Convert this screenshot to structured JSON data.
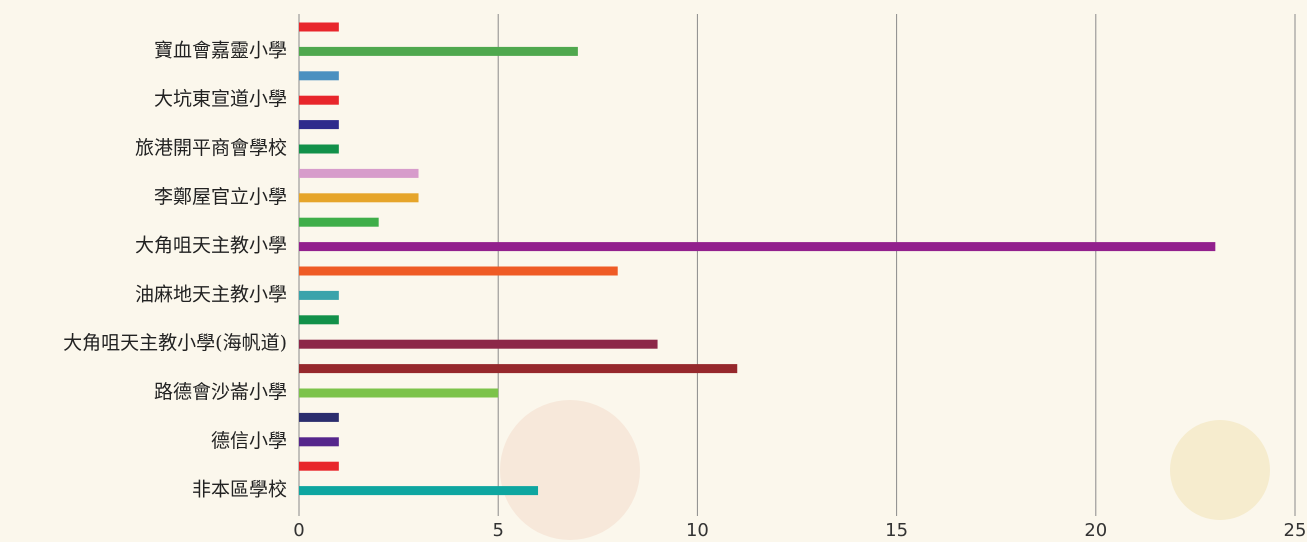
{
  "chart_data": {
    "type": "hbar",
    "categories": [
      null,
      "寶血會嘉靈小學",
      null,
      "大坑東宣道小學",
      null,
      "旅港開平商會學校",
      null,
      "李鄭屋官立小學",
      null,
      "大角咀天主教小學",
      null,
      "油麻地天主教小學",
      null,
      "大角咀天主教小學(海帆道)",
      null,
      "路德會沙崙小學",
      null,
      "德信小學",
      null,
      "非本區學校"
    ],
    "values": [
      1,
      7,
      1,
      1,
      1,
      1,
      3,
      3,
      2,
      23,
      8,
      1,
      1,
      9,
      11,
      5,
      1,
      1,
      1,
      6
    ],
    "colors": [
      "#e8262b",
      "#4fa84e",
      "#4a90c0",
      "#e8262b",
      "#2e2a8c",
      "#12914a",
      "#d79ccb",
      "#e6a52a",
      "#3fae49",
      "#92208d",
      "#ef5b25",
      "#3aa3ab",
      "#12914a",
      "#8c2748",
      "#96282c",
      "#7cc34a",
      "#2b2d6e",
      "#55268c",
      "#e8262b",
      "#0ea6a0"
    ],
    "xlim": [
      0,
      25
    ],
    "xticks": [
      0,
      5,
      10,
      15,
      20,
      25
    ],
    "grid": true
  }
}
